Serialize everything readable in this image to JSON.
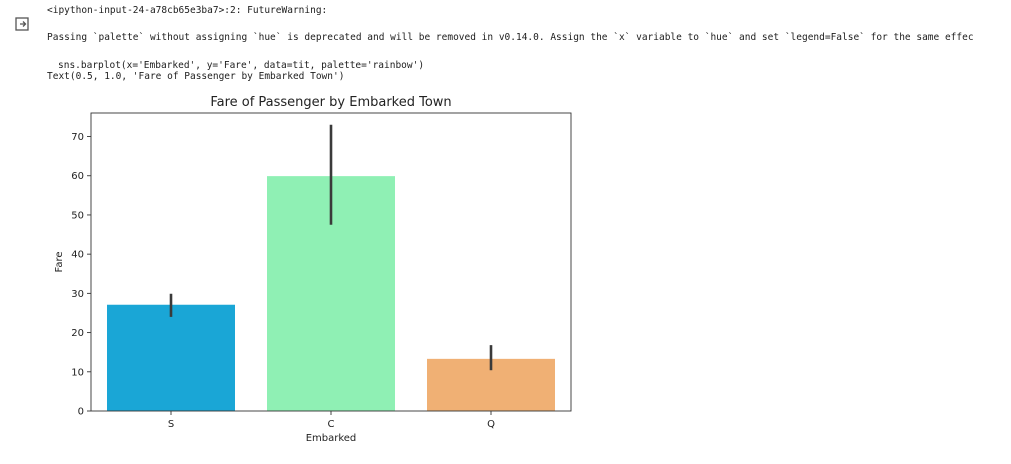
{
  "output": {
    "icon": "output-redirect-icon",
    "warning_header": "<ipython-input-24-a78cb65e3ba7>:2: FutureWarning:",
    "warning_message": "Passing `palette` without assigning `hue` is deprecated and will be removed in v0.14.0. Assign the `x` variable to `hue` and set `legend=False` for the same effec",
    "code_line": "sns.barplot(x='Embarked', y='Fare', data=tit, palette='rainbow')",
    "text_repr": "Text(0.5, 1.0, 'Fare of Passenger by Embarked Town')"
  },
  "chart_data": {
    "type": "bar",
    "title": "Fare of Passenger by Embarked Town",
    "xlabel": "Embarked",
    "ylabel": "Fare",
    "categories": [
      "S",
      "C",
      "Q"
    ],
    "values": [
      27.1,
      59.9,
      13.3
    ],
    "error_low": [
      24.0,
      47.5,
      10.4
    ],
    "error_high": [
      29.9,
      73.0,
      16.8
    ],
    "colors": [
      "#1aa6d6",
      "#8ff0b4",
      "#f0b074"
    ],
    "ylim": [
      0,
      76
    ],
    "yticks": [
      0,
      10,
      20,
      30,
      40,
      50,
      60,
      70
    ],
    "grid": false
  }
}
